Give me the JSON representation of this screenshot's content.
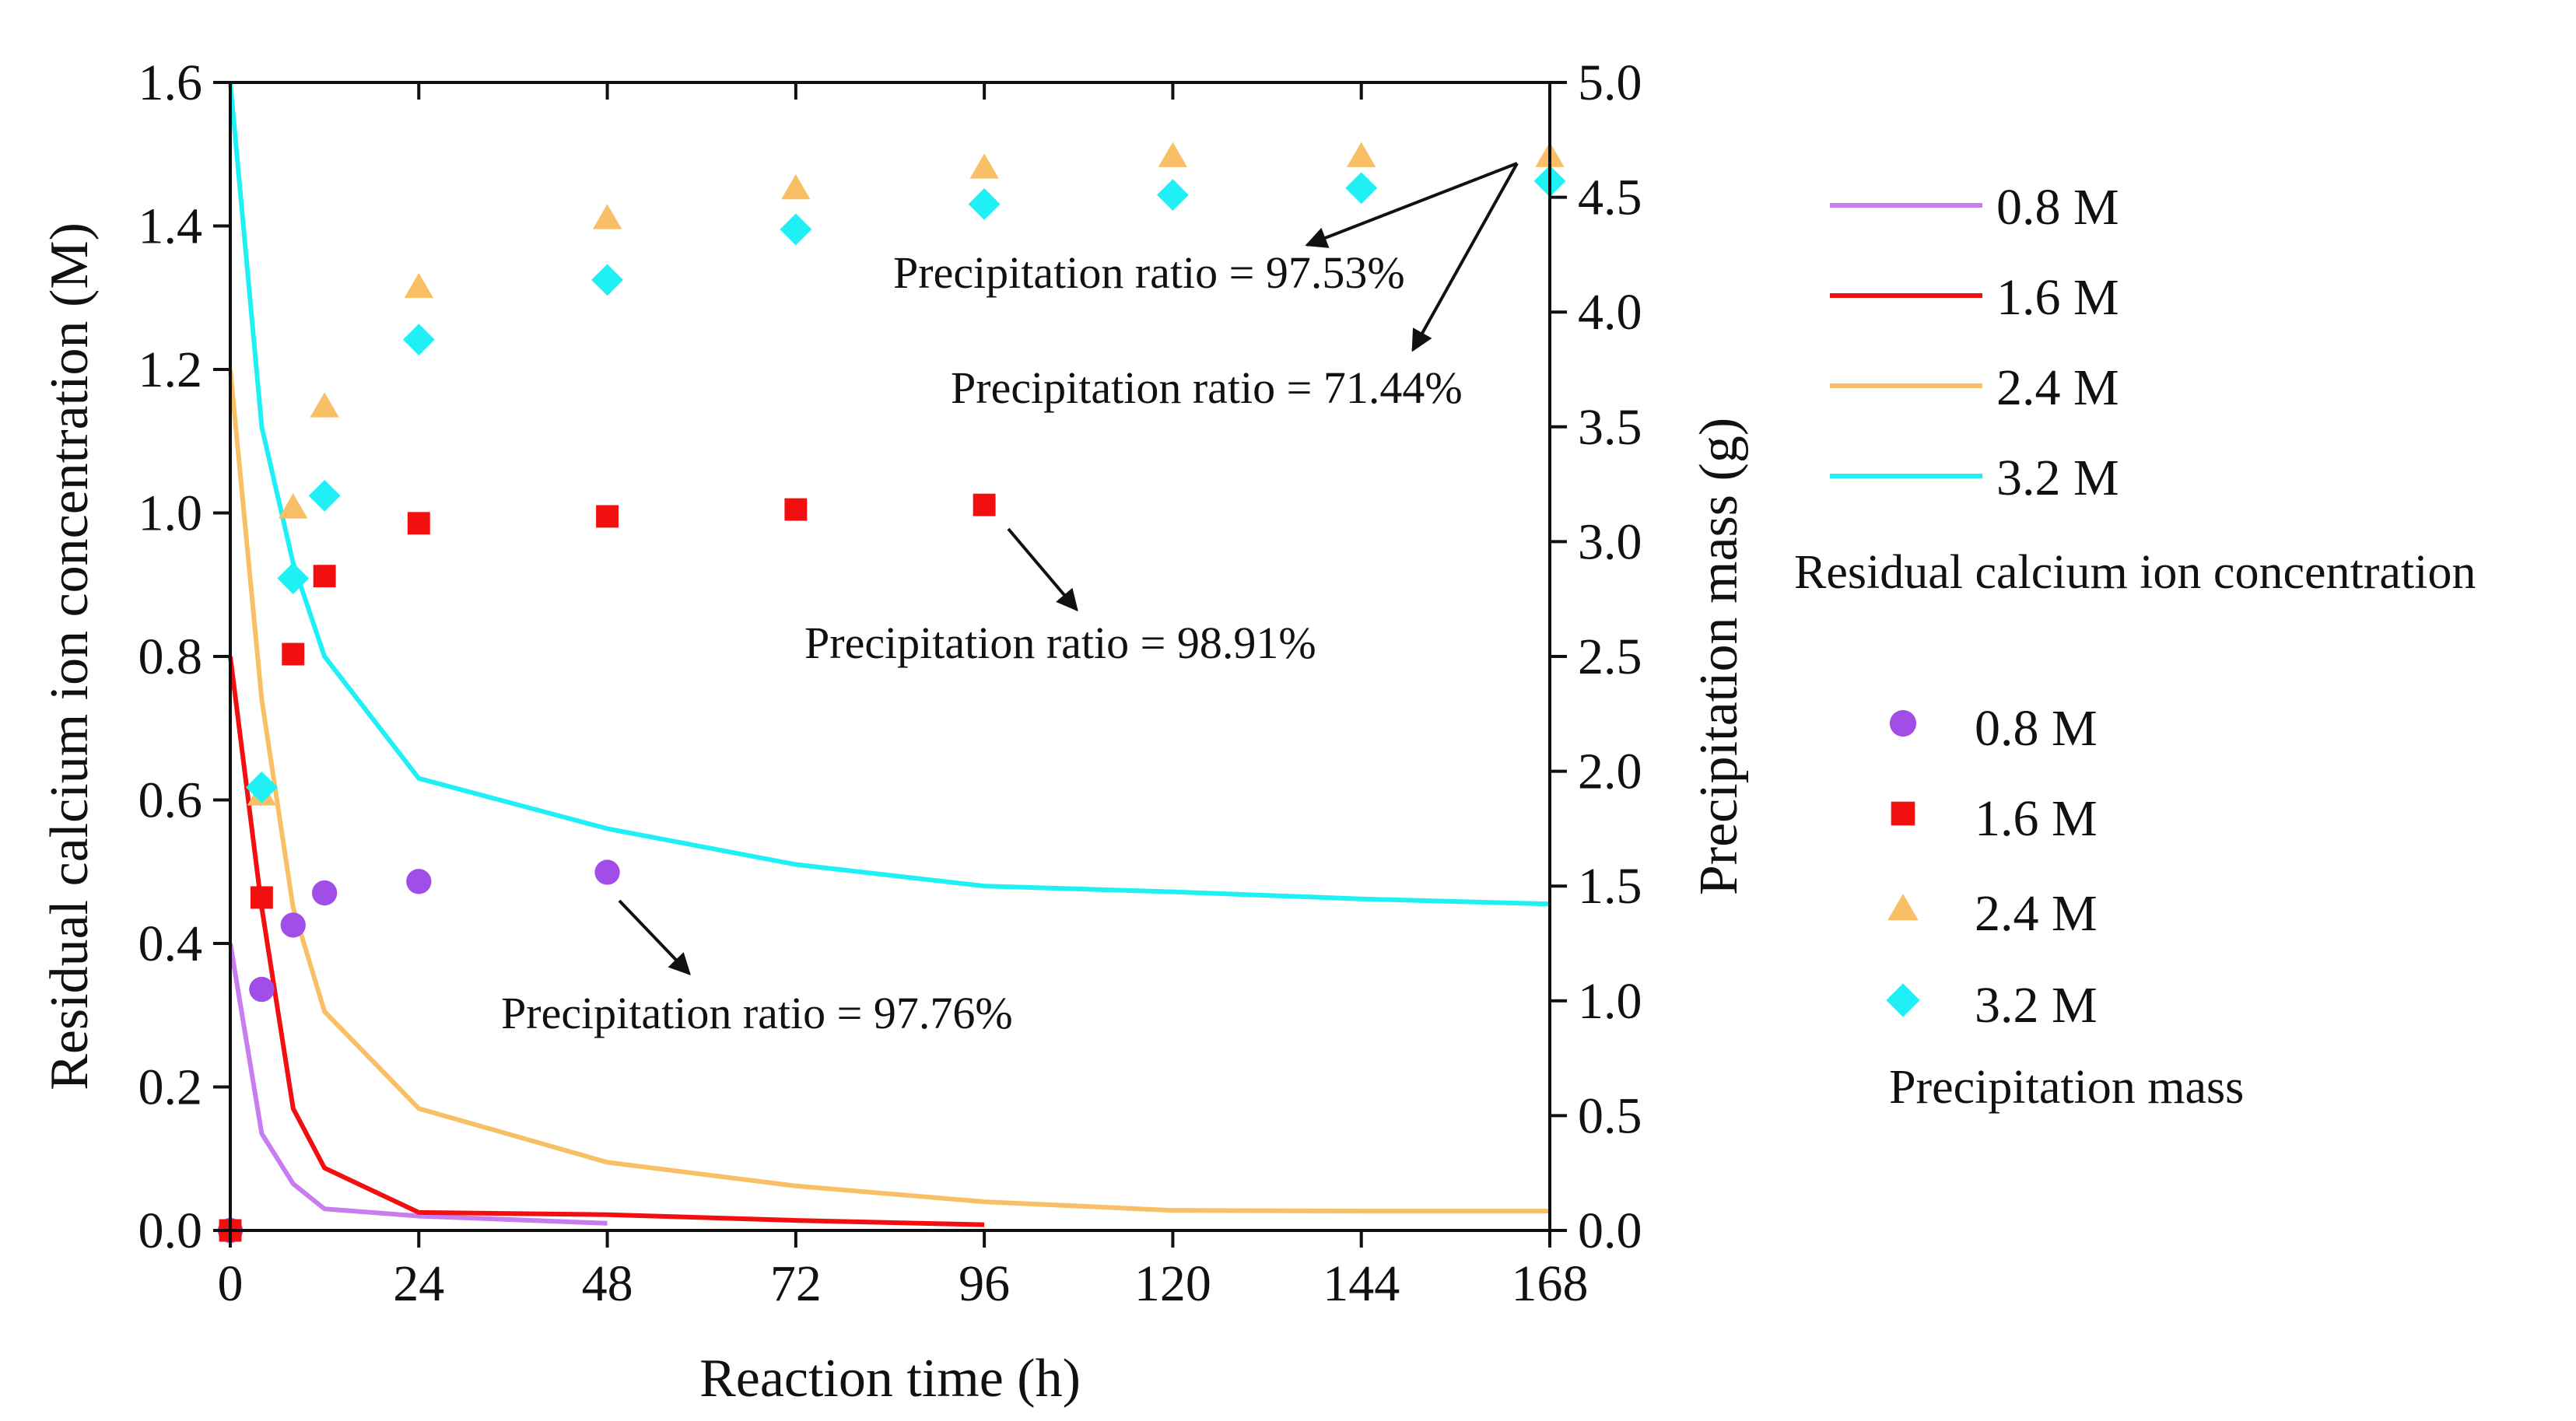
{
  "chart_data": {
    "type": "line+scatter",
    "xlabel": "Reaction time (h)",
    "ylabel_left": "Residual calcium ion concentration (M)",
    "ylabel_right": "Precipitation mass (g)",
    "xlim": [
      0,
      168
    ],
    "ylim_left": [
      0,
      1.6
    ],
    "ylim_right": [
      0,
      5.0
    ],
    "x_ticks": [
      "0",
      "24",
      "48",
      "72",
      "96",
      "120",
      "144",
      "168"
    ],
    "y_left_ticks": [
      "0.0",
      "0.2",
      "0.4",
      "0.6",
      "0.8",
      "1.0",
      "1.2",
      "1.4",
      "1.6"
    ],
    "y_right_ticks": [
      "0.0",
      "0.5",
      "1.0",
      "1.5",
      "2.0",
      "2.5",
      "3.0",
      "3.5",
      "4.0",
      "4.5",
      "5.0"
    ],
    "line_series": [
      {
        "name": "0.8 M",
        "color": "#c77cf0",
        "x": [
          0,
          4,
          8,
          12,
          24,
          48
        ],
        "y": [
          0.4,
          0.135,
          0.065,
          0.03,
          0.02,
          0.01
        ]
      },
      {
        "name": "1.6 M",
        "color": "#f20f10",
        "x": [
          0,
          4,
          8,
          12,
          24,
          48,
          72,
          96
        ],
        "y": [
          0.8,
          0.45,
          0.17,
          0.087,
          0.025,
          0.022,
          0.014,
          0.008
        ]
      },
      {
        "name": "2.4 M",
        "color": "#f8bf66",
        "x": [
          0,
          4,
          8,
          12,
          24,
          48,
          72,
          96,
          120,
          144,
          168
        ],
        "y": [
          1.2,
          0.74,
          0.45,
          0.305,
          0.17,
          0.095,
          0.062,
          0.04,
          0.028,
          0.027,
          0.027
        ]
      },
      {
        "name": "3.2 M",
        "color": "#1ff0f5",
        "x": [
          0,
          4,
          8,
          12,
          24,
          48,
          72,
          96,
          120,
          144,
          168
        ],
        "y": [
          1.6,
          1.12,
          0.93,
          0.8,
          0.63,
          0.56,
          0.51,
          0.48,
          0.472,
          0.462,
          0.455
        ]
      }
    ],
    "scatter_series": [
      {
        "name": "0.8 M",
        "marker": "circle",
        "color": "#a14de8",
        "x": [
          0,
          4,
          8,
          12,
          24,
          48
        ],
        "y": [
          0.0,
          1.05,
          1.33,
          1.47,
          1.52,
          1.56
        ]
      },
      {
        "name": "1.6 M",
        "marker": "square",
        "color": "#f20f10",
        "x": [
          0,
          4,
          8,
          12,
          24,
          48,
          72,
          96
        ],
        "y": [
          0.0,
          1.45,
          2.51,
          2.85,
          3.08,
          3.11,
          3.14,
          3.16
        ]
      },
      {
        "name": "2.4 M",
        "marker": "triangle",
        "color": "#f8bf66",
        "x": [
          4,
          8,
          12,
          24,
          48,
          72,
          96,
          120,
          144,
          168
        ],
        "y": [
          1.9,
          3.15,
          3.59,
          4.11,
          4.41,
          4.54,
          4.63,
          4.68,
          4.68,
          4.68
        ]
      },
      {
        "name": "3.2 M",
        "marker": "diamond",
        "color": "#1ff0f5",
        "x": [
          4,
          8,
          12,
          24,
          48,
          72,
          96,
          120,
          144,
          168
        ],
        "y": [
          1.93,
          2.84,
          3.2,
          3.88,
          4.14,
          4.36,
          4.47,
          4.51,
          4.54,
          4.57
        ]
      }
    ],
    "annotations": [
      {
        "text": "Precipitation ratio = 97.53%"
      },
      {
        "text": "Precipitation ratio = 71.44%"
      },
      {
        "text": "Precipitation ratio = 98.91%"
      },
      {
        "text": "Precipitation ratio = 97.76%"
      }
    ],
    "legend": {
      "line_title": "Residual calcium ion concentration",
      "scatter_title": "Precipitation mass",
      "position": "right"
    }
  }
}
